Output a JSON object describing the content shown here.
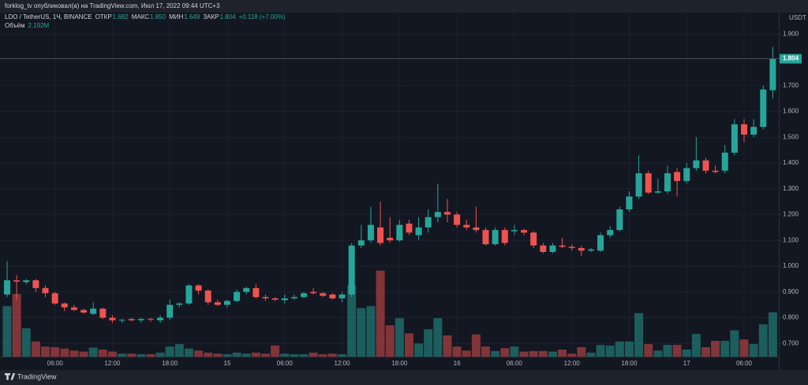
{
  "chart_data": {
    "type": "candlestick",
    "title": "forklog_tv опубликовал(а) на TradingView.com, Июл 17, 2022 09:44 UTC+3",
    "legend": {
      "symbol": "LDO / TetherUS, 1Ч, BINANCE",
      "labels": [
        "ОТКР",
        "МАКС",
        "МИН",
        "ЗАКР"
      ],
      "values": [
        "1.682",
        "1.850",
        "1.649",
        "1.804"
      ],
      "change": "+0.118 (+7.00%)"
    },
    "y_axis_label": "USDT",
    "brand": "TradingView",
    "up_color": "#26a69a",
    "down_color": "#ef5350",
    "grid": true,
    "categories": [
      null,
      null,
      null,
      null,
      null,
      "06:00",
      null,
      null,
      null,
      null,
      null,
      "12:00",
      null,
      null,
      null,
      null,
      null,
      "18:00",
      null,
      null,
      null,
      null,
      null,
      "15",
      null,
      null,
      null,
      null,
      null,
      "06:00",
      null,
      null,
      null,
      null,
      null,
      "12:00",
      null,
      null,
      null,
      null,
      null,
      "18:00",
      null,
      null,
      null,
      null,
      null,
      "16",
      null,
      null,
      null,
      null,
      null,
      "06:00",
      null,
      null,
      null,
      null,
      null,
      "12:00",
      null,
      null,
      null,
      null,
      null,
      "18:00",
      null,
      null,
      null,
      null,
      null,
      "17",
      null,
      null,
      null,
      null,
      null,
      "06:00",
      null,
      null,
      null
    ],
    "open": [
      0.89,
      0.945,
      0.938,
      0.945,
      0.915,
      0.895,
      0.855,
      0.84,
      0.83,
      0.815,
      0.835,
      0.8,
      0.79,
      0.795,
      0.79,
      0.795,
      0.79,
      0.8,
      0.85,
      0.855,
      0.925,
      0.905,
      0.86,
      0.85,
      0.865,
      0.9,
      0.915,
      0.88,
      0.875,
      0.868,
      0.875,
      0.88,
      0.9,
      0.895,
      0.89,
      0.875,
      0.89,
      1.08,
      1.1,
      1.15,
      1.11,
      1.1,
      1.165,
      1.12,
      1.15,
      1.19,
      1.21,
      1.2,
      1.16,
      1.15,
      1.14,
      1.085,
      1.14,
      1.135,
      1.14,
      1.13,
      1.08,
      1.055,
      1.08,
      1.075,
      1.07,
      1.06,
      1.06,
      1.12,
      1.14,
      1.22,
      1.27,
      1.36,
      1.285,
      1.29,
      1.365,
      1.33,
      1.38,
      1.41,
      1.37,
      1.37,
      1.44,
      1.55,
      1.51,
      1.54,
      1.682
    ],
    "high": [
      1.02,
      0.965,
      0.95,
      0.95,
      0.925,
      0.9,
      0.86,
      0.85,
      0.835,
      0.86,
      0.84,
      0.81,
      0.795,
      0.8,
      0.8,
      0.8,
      0.81,
      0.87,
      0.86,
      0.93,
      0.93,
      0.91,
      0.87,
      0.87,
      0.91,
      0.92,
      0.93,
      0.89,
      0.88,
      0.89,
      0.89,
      0.9,
      0.915,
      0.9,
      0.895,
      0.9,
      1.09,
      1.16,
      1.23,
      1.25,
      1.19,
      1.18,
      1.18,
      1.19,
      1.22,
      1.32,
      1.26,
      1.21,
      1.18,
      1.23,
      1.15,
      1.15,
      1.15,
      1.16,
      1.145,
      1.135,
      1.09,
      1.09,
      1.11,
      1.085,
      1.08,
      1.07,
      1.13,
      1.155,
      1.23,
      1.29,
      1.43,
      1.37,
      1.34,
      1.39,
      1.38,
      1.4,
      1.5,
      1.42,
      1.39,
      1.47,
      1.57,
      1.57,
      1.57,
      1.7,
      1.85
    ],
    "low": [
      0.88,
      0.87,
      0.93,
      0.9,
      0.88,
      0.85,
      0.825,
      0.825,
      0.815,
      0.81,
      0.795,
      0.78,
      0.78,
      0.785,
      0.78,
      0.785,
      0.78,
      0.79,
      0.84,
      0.85,
      0.89,
      0.85,
      0.845,
      0.84,
      0.86,
      0.89,
      0.875,
      0.865,
      0.865,
      0.855,
      0.87,
      0.875,
      0.89,
      0.88,
      0.87,
      0.86,
      0.88,
      1.07,
      1.09,
      1.08,
      1.09,
      1.095,
      1.12,
      1.1,
      1.13,
      1.17,
      1.17,
      1.15,
      1.14,
      1.13,
      1.08,
      1.08,
      1.08,
      1.12,
      1.12,
      1.07,
      1.05,
      1.05,
      1.07,
      1.06,
      1.04,
      1.055,
      1.055,
      1.11,
      1.135,
      1.21,
      1.26,
      1.28,
      1.28,
      1.28,
      1.27,
      1.32,
      1.37,
      1.36,
      1.36,
      1.36,
      1.43,
      1.48,
      1.5,
      1.53,
      1.649
    ],
    "close": [
      0.945,
      0.94,
      0.945,
      0.915,
      0.895,
      0.855,
      0.84,
      0.83,
      0.82,
      0.835,
      0.8,
      0.79,
      0.792,
      0.79,
      0.795,
      0.793,
      0.8,
      0.85,
      0.855,
      0.925,
      0.905,
      0.86,
      0.85,
      0.865,
      0.9,
      0.915,
      0.88,
      0.875,
      0.87,
      0.875,
      0.88,
      0.895,
      0.895,
      0.885,
      0.875,
      0.89,
      1.08,
      1.1,
      1.16,
      1.09,
      1.1,
      1.16,
      1.13,
      1.15,
      1.19,
      1.21,
      1.2,
      1.16,
      1.15,
      1.14,
      1.085,
      1.14,
      1.09,
      1.14,
      1.13,
      1.08,
      1.055,
      1.08,
      1.075,
      1.07,
      1.06,
      1.065,
      1.12,
      1.14,
      1.22,
      1.27,
      1.36,
      1.285,
      1.29,
      1.36,
      1.33,
      1.38,
      1.41,
      1.37,
      1.365,
      1.44,
      1.55,
      1.51,
      1.54,
      1.685,
      1.804
    ],
    "volume": {
      "name": "Объём",
      "axis": "y2",
      "last_value_label": "2.192M",
      "values": [
        2.5,
        3.1,
        1.4,
        0.75,
        0.5,
        0.47,
        0.4,
        0.3,
        0.25,
        0.45,
        0.35,
        0.25,
        0.15,
        0.15,
        0.12,
        0.12,
        0.2,
        0.5,
        0.62,
        0.4,
        0.3,
        0.2,
        0.15,
        0.12,
        0.2,
        0.15,
        0.2,
        0.15,
        0.55,
        0.15,
        0.12,
        0.12,
        0.2,
        0.12,
        0.15,
        0.12,
        3.55,
        2.4,
        2.5,
        4.25,
        1.55,
        1.9,
        1.15,
        0.65,
        1.35,
        1.9,
        1.05,
        0.5,
        0.3,
        1.1,
        0.5,
        0.28,
        0.42,
        0.5,
        0.25,
        0.28,
        0.28,
        0.25,
        0.35,
        0.15,
        0.47,
        0.2,
        0.58,
        0.55,
        0.75,
        0.75,
        2.15,
        0.62,
        0.3,
        0.58,
        0.58,
        0.35,
        1.12,
        0.47,
        0.78,
        0.78,
        1.3,
        0.85,
        0.62,
        1.6,
        2.192
      ]
    },
    "ylim": [
      0.649,
      1.983
    ],
    "yticks": [
      {
        "value": 0.7,
        "label": "0.700"
      },
      {
        "value": 0.8,
        "label": "0.800"
      },
      {
        "value": 0.9,
        "label": "0.900"
      },
      {
        "value": 1.0,
        "label": "1.000"
      },
      {
        "value": 1.1,
        "label": "1.100"
      },
      {
        "value": 1.2,
        "label": "1.200"
      },
      {
        "value": 1.3,
        "label": "1.300"
      },
      {
        "value": 1.4,
        "label": "1.400"
      },
      {
        "value": 1.5,
        "label": "1.500"
      },
      {
        "value": 1.6,
        "label": "1.600"
      },
      {
        "value": 1.7,
        "label": "1.700"
      },
      {
        "value": 1.9,
        "label": "1.900"
      }
    ],
    "y2lim": [
      0,
      17
    ]
  }
}
